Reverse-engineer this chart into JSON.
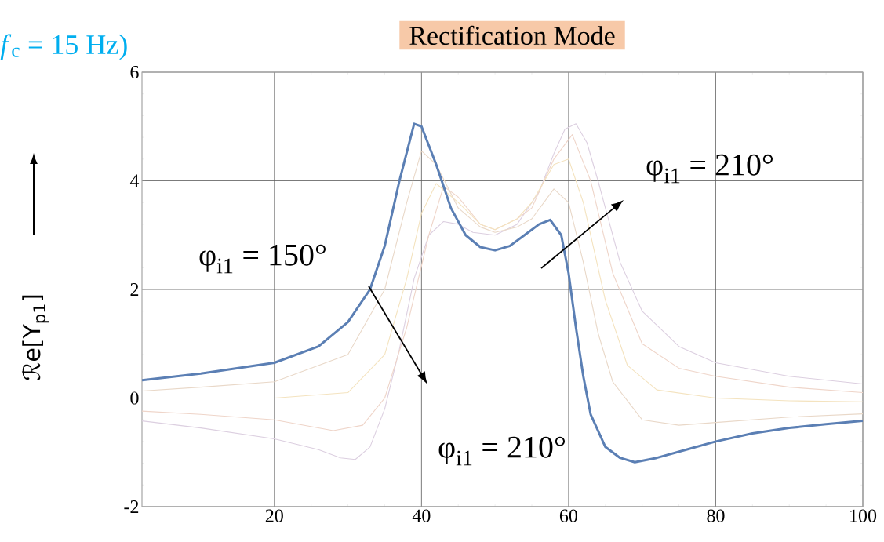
{
  "chart_data": {
    "type": "line",
    "title": "Rectification Mode",
    "ylabel": "ℛe[Y$_{p1}$]",
    "annotations": [
      "*f*$_{c}$ = 15 Hz)",
      "φ$_{i1}$ = 150°",
      "φ$_{i1}$ = 210°",
      "φ$_{i1}$ = 210°"
    ],
    "xlim": [
      2,
      100
    ],
    "ylim": [
      -2,
      6
    ],
    "xticks": [
      20,
      40,
      60,
      80,
      100
    ],
    "yticks": [
      -2,
      0,
      2,
      4,
      6
    ],
    "grid": true,
    "series": [
      {
        "color": "#dccfe0",
        "x": [
          2,
          10,
          20,
          26,
          29,
          31,
          33,
          35,
          37,
          39,
          41,
          43,
          45,
          47,
          50,
          53,
          56,
          58,
          59.5,
          61,
          62.5,
          64,
          67,
          70,
          75,
          80,
          90,
          100
        ],
        "values": [
          -0.42,
          -0.55,
          -0.75,
          -0.95,
          -1.1,
          -1.13,
          -0.9,
          -0.2,
          0.9,
          2.2,
          3.0,
          3.25,
          3.2,
          3.05,
          3.0,
          3.2,
          3.8,
          4.5,
          4.95,
          5.05,
          4.7,
          4.0,
          2.5,
          1.6,
          0.95,
          0.65,
          0.4,
          0.26
        ]
      },
      {
        "color": "#efd5c9",
        "x": [
          2,
          10,
          20,
          28,
          32,
          35,
          38,
          41,
          43,
          45,
          48,
          50,
          53,
          55,
          58,
          60.5,
          63,
          66,
          70,
          75,
          80,
          90,
          100
        ],
        "values": [
          -0.24,
          -0.3,
          -0.4,
          -0.6,
          -0.5,
          0.0,
          1.3,
          3.0,
          3.9,
          3.7,
          3.2,
          3.1,
          3.3,
          3.5,
          4.4,
          4.85,
          4.0,
          2.3,
          1.0,
          0.55,
          0.4,
          0.2,
          0.1
        ]
      },
      {
        "color": "#f4e3bf",
        "x": [
          2,
          10,
          20,
          30,
          35,
          38,
          40,
          42,
          45,
          48,
          50,
          53,
          55,
          58,
          60,
          62,
          65,
          68,
          72,
          80,
          90,
          100
        ],
        "values": [
          0.0,
          0.0,
          0.0,
          0.1,
          0.8,
          2.2,
          3.4,
          3.95,
          3.6,
          3.2,
          3.1,
          3.3,
          3.6,
          4.3,
          4.4,
          3.6,
          1.8,
          0.6,
          0.15,
          0.0,
          -0.05,
          -0.07
        ]
      },
      {
        "color": "#e9d8c8",
        "x": [
          2,
          10,
          20,
          30,
          35,
          38,
          40,
          42,
          45,
          48,
          50,
          53,
          55,
          58,
          60,
          62,
          64,
          66,
          70,
          75,
          80,
          90,
          100
        ],
        "values": [
          0.13,
          0.2,
          0.3,
          0.8,
          2.0,
          3.6,
          4.55,
          4.3,
          3.5,
          3.15,
          3.05,
          3.15,
          3.3,
          3.85,
          3.6,
          2.5,
          1.2,
          0.3,
          -0.4,
          -0.5,
          -0.45,
          -0.35,
          -0.29
        ]
      },
      {
        "color": "#5b7fb4",
        "x": [
          2,
          10,
          20,
          26,
          30,
          33,
          35,
          37,
          39,
          40,
          42,
          44,
          46,
          48,
          50,
          52,
          54,
          56,
          57.5,
          59,
          60,
          61,
          62,
          63,
          65,
          67,
          69,
          72,
          76,
          80,
          85,
          90,
          95,
          100
        ],
        "values": [
          0.33,
          0.45,
          0.65,
          0.95,
          1.4,
          2.0,
          2.8,
          4.0,
          5.05,
          5.0,
          4.3,
          3.5,
          3.0,
          2.78,
          2.72,
          2.8,
          3.0,
          3.2,
          3.28,
          3.0,
          2.3,
          1.3,
          0.4,
          -0.3,
          -0.9,
          -1.1,
          -1.18,
          -1.1,
          -0.95,
          -0.8,
          -0.65,
          -0.55,
          -0.48,
          -0.42
        ]
      }
    ]
  }
}
